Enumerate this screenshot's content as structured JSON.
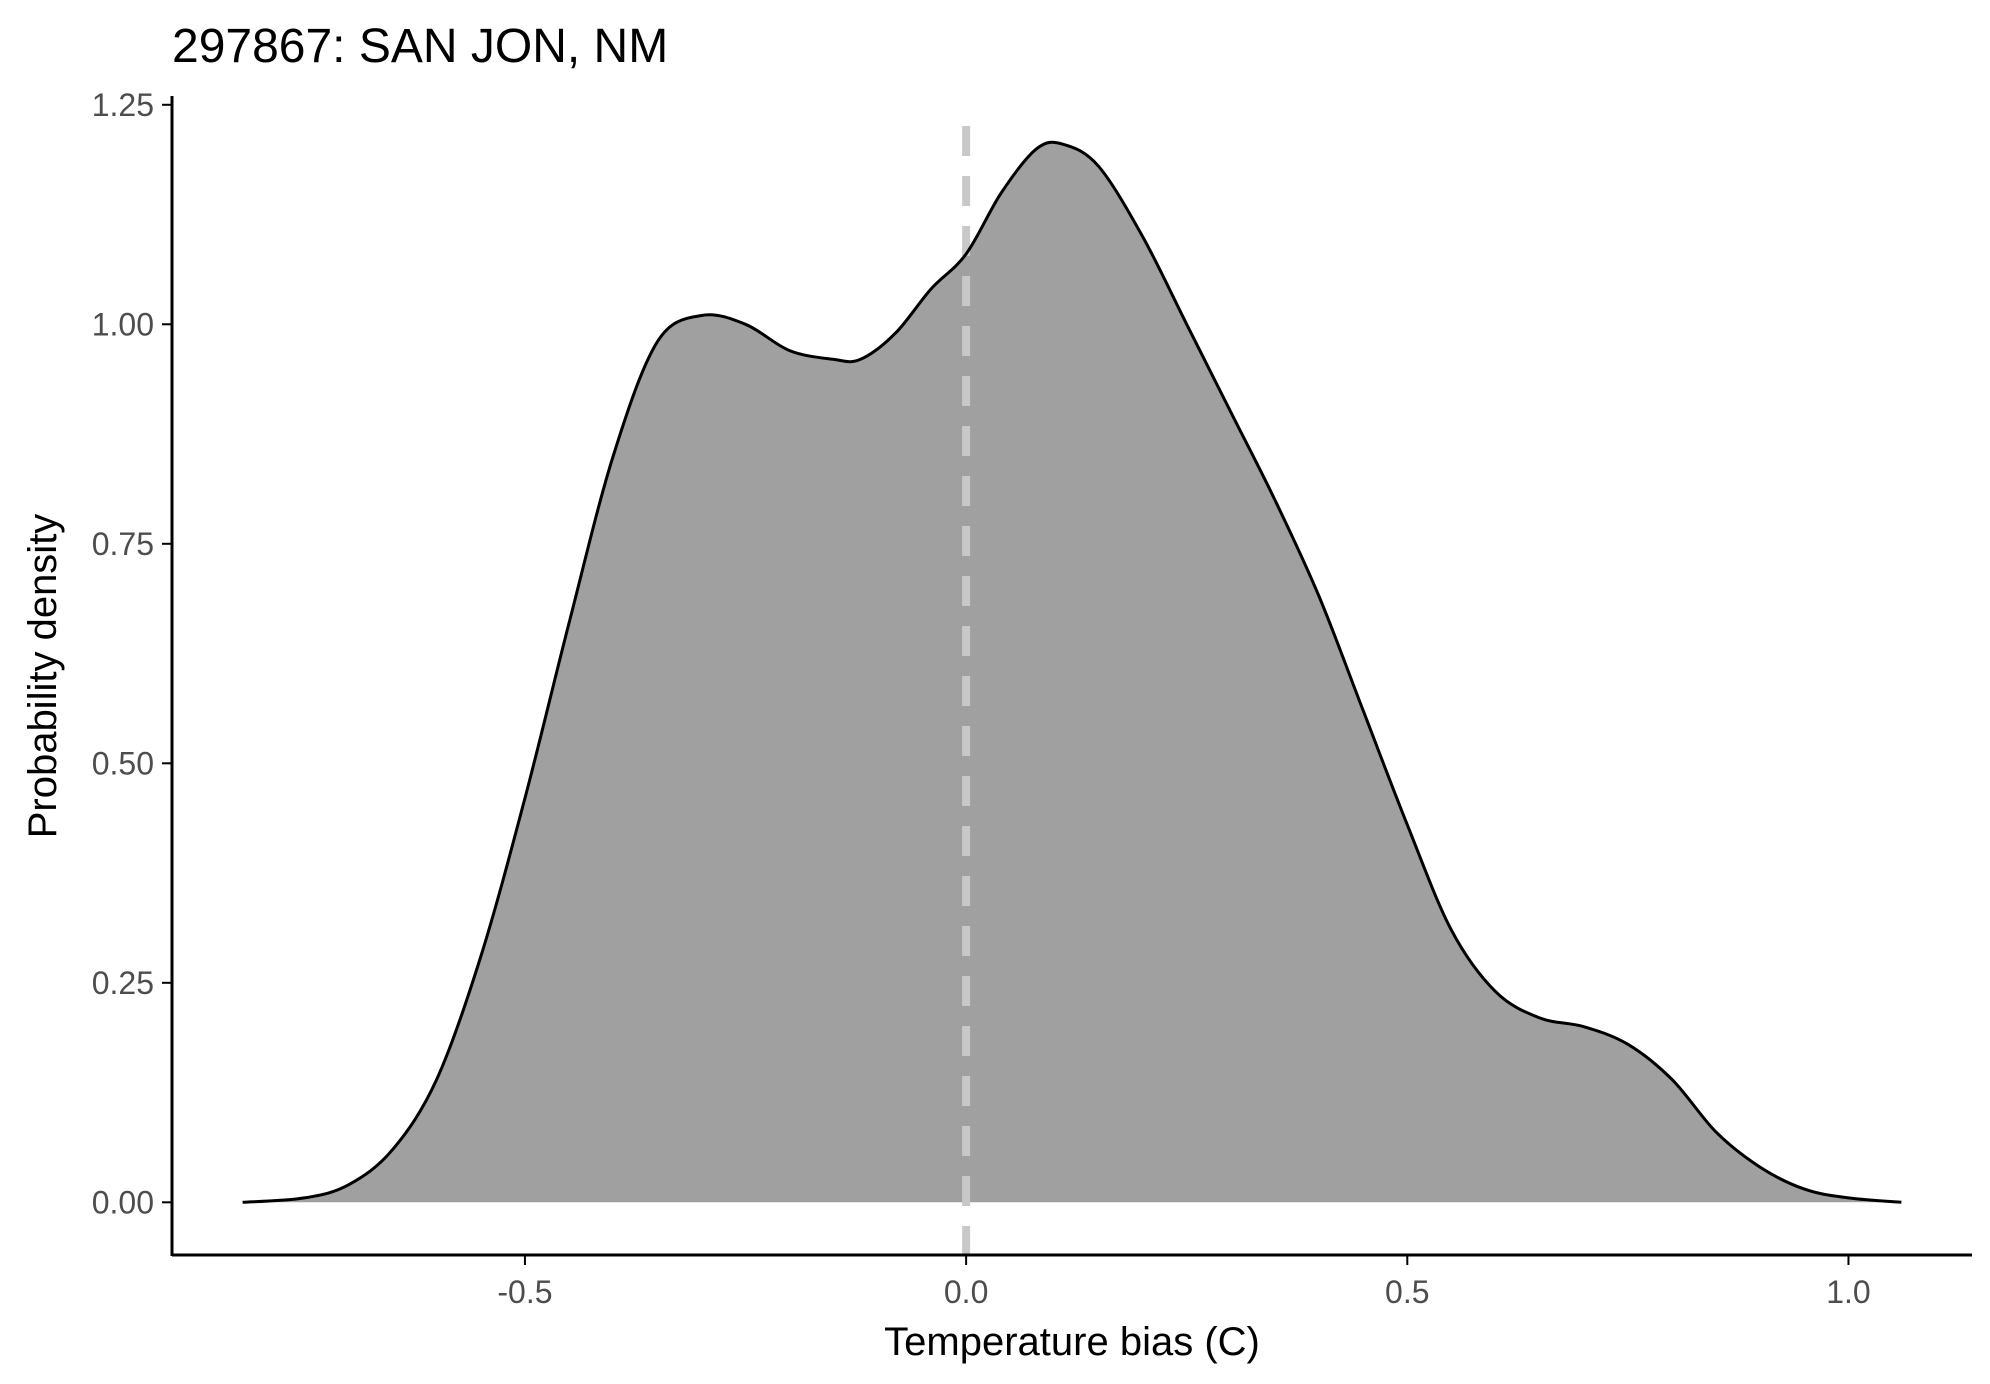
{
  "chart_data": {
    "type": "area",
    "title": "297867: SAN JON, NM",
    "xlabel": "Temperature bias (C)",
    "ylabel": "Probability density",
    "xlim": [
      -0.9,
      1.14
    ],
    "ylim": [
      -0.06,
      1.26
    ],
    "xticks": [
      -0.5,
      0.0,
      0.5,
      1.0
    ],
    "xtick_labels": [
      "-0.5",
      "0.0",
      "0.5",
      "1.0"
    ],
    "yticks": [
      0.0,
      0.25,
      0.5,
      0.75,
      1.0,
      1.25
    ],
    "ytick_labels": [
      "0.00",
      "0.25",
      "0.50",
      "0.75",
      "1.00",
      "1.25"
    ],
    "reference_line": {
      "x": 0.0,
      "style": "dashed",
      "color": "#c8c8c8"
    },
    "grid": false,
    "fill_color": "#a0a0a0",
    "line_color": "#000000",
    "series": [
      {
        "x": [
          -0.82,
          -0.75,
          -0.7,
          -0.65,
          -0.6,
          -0.55,
          -0.5,
          -0.45,
          -0.4,
          -0.35,
          -0.3,
          -0.25,
          -0.2,
          -0.15,
          -0.12,
          -0.08,
          -0.04,
          0.0,
          0.04,
          0.08,
          0.11,
          0.15,
          0.2,
          0.25,
          0.3,
          0.35,
          0.4,
          0.45,
          0.5,
          0.55,
          0.6,
          0.65,
          0.7,
          0.75,
          0.8,
          0.85,
          0.9,
          0.95,
          1.0,
          1.06
        ],
        "y": [
          0.0,
          0.005,
          0.02,
          0.06,
          0.14,
          0.28,
          0.46,
          0.66,
          0.85,
          0.98,
          1.01,
          1.0,
          0.97,
          0.96,
          0.96,
          0.99,
          1.04,
          1.08,
          1.15,
          1.2,
          1.205,
          1.18,
          1.1,
          1.0,
          0.9,
          0.8,
          0.69,
          0.56,
          0.43,
          0.31,
          0.24,
          0.21,
          0.2,
          0.18,
          0.14,
          0.08,
          0.04,
          0.015,
          0.005,
          0.0
        ]
      }
    ]
  }
}
